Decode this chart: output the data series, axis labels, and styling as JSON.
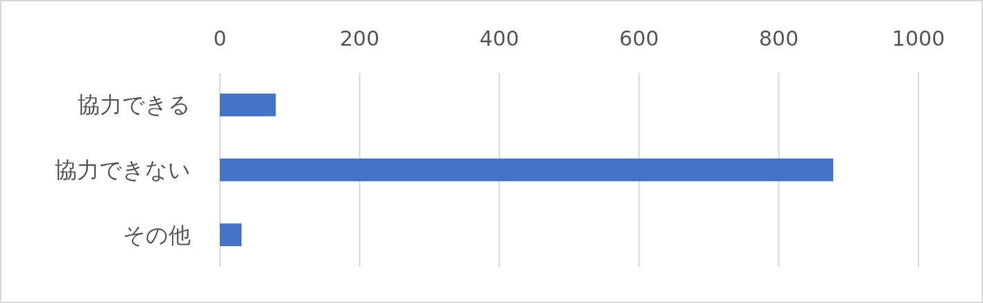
{
  "chart_data": {
    "type": "bar",
    "orientation": "horizontal",
    "categories": [
      "協力できる",
      "協力できない",
      "その他"
    ],
    "values": [
      80,
      878,
      31
    ],
    "color": "#4472c4",
    "xlim": [
      0,
      1000
    ],
    "xticks": [
      0,
      200,
      400,
      600,
      800,
      1000
    ],
    "grid": "x"
  }
}
